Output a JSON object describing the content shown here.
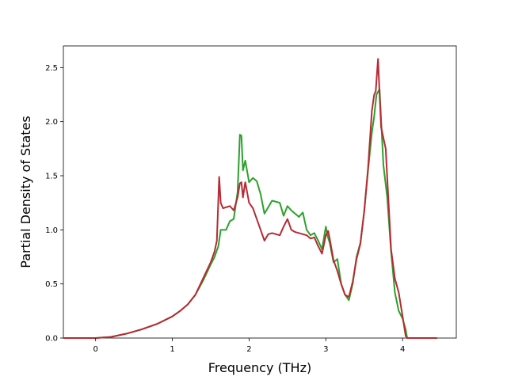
{
  "chart_data": {
    "type": "line",
    "title": "",
    "xlabel": "Frequency (THz)",
    "ylabel": "Partial Density of States",
    "xlim": [
      -0.42,
      4.7
    ],
    "ylim": [
      0.0,
      2.7
    ],
    "xticks": [
      0,
      1,
      2,
      3,
      4
    ],
    "yticks": [
      0.0,
      0.5,
      1.0,
      1.5,
      2.0,
      2.5
    ],
    "xtick_labels": [
      "0",
      "1",
      "2",
      "3",
      "4"
    ],
    "ytick_labels": [
      "0.0",
      "0.5",
      "1.0",
      "1.5",
      "2.0",
      "2.5"
    ],
    "grid": false,
    "series": [
      {
        "color": "#2ca02c",
        "x": [
          -0.42,
          0.0,
          0.2,
          0.4,
          0.6,
          0.8,
          1.0,
          1.1,
          1.2,
          1.3,
          1.4,
          1.5,
          1.55,
          1.6,
          1.63,
          1.7,
          1.75,
          1.8,
          1.85,
          1.88,
          1.9,
          1.92,
          1.95,
          2.0,
          2.05,
          2.1,
          2.15,
          2.2,
          2.3,
          2.4,
          2.45,
          2.5,
          2.55,
          2.6,
          2.65,
          2.7,
          2.75,
          2.8,
          2.85,
          2.9,
          2.95,
          3.0,
          3.02,
          3.05,
          3.1,
          3.15,
          3.2,
          3.25,
          3.3,
          3.35,
          3.4,
          3.45,
          3.5,
          3.55,
          3.6,
          3.63,
          3.66,
          3.7,
          3.75,
          3.8,
          3.85,
          3.9,
          3.95,
          4.0,
          4.04,
          4.06,
          4.1,
          4.2,
          4.3,
          4.45
        ],
        "y": [
          0.0,
          0.0,
          0.01,
          0.04,
          0.08,
          0.13,
          0.2,
          0.25,
          0.31,
          0.4,
          0.53,
          0.68,
          0.75,
          0.85,
          1.0,
          1.0,
          1.08,
          1.1,
          1.35,
          1.88,
          1.87,
          1.55,
          1.64,
          1.44,
          1.48,
          1.45,
          1.33,
          1.15,
          1.27,
          1.25,
          1.13,
          1.22,
          1.18,
          1.15,
          1.12,
          1.16,
          1.0,
          0.95,
          0.97,
          0.9,
          0.82,
          1.03,
          0.95,
          0.88,
          0.7,
          0.73,
          0.5,
          0.4,
          0.35,
          0.5,
          0.75,
          0.88,
          1.17,
          1.55,
          1.9,
          2.05,
          2.25,
          2.3,
          1.6,
          1.3,
          0.8,
          0.42,
          0.25,
          0.18,
          0.08,
          0.0,
          0.0,
          0.0,
          0.0,
          0.0
        ]
      },
      {
        "color": "#b72a33",
        "x": [
          -0.42,
          0.0,
          0.2,
          0.4,
          0.6,
          0.8,
          1.0,
          1.1,
          1.2,
          1.3,
          1.4,
          1.5,
          1.55,
          1.58,
          1.61,
          1.63,
          1.66,
          1.75,
          1.8,
          1.85,
          1.88,
          1.9,
          1.92,
          1.95,
          2.0,
          2.05,
          2.1,
          2.15,
          2.2,
          2.25,
          2.3,
          2.4,
          2.45,
          2.5,
          2.55,
          2.6,
          2.65,
          2.7,
          2.75,
          2.8,
          2.85,
          2.9,
          2.95,
          3.0,
          3.03,
          3.05,
          3.1,
          3.15,
          3.2,
          3.25,
          3.3,
          3.35,
          3.4,
          3.45,
          3.5,
          3.55,
          3.6,
          3.63,
          3.65,
          3.68,
          3.72,
          3.78,
          3.8,
          3.85,
          3.9,
          3.95,
          4.0,
          4.04,
          4.06,
          4.1,
          4.2,
          4.3,
          4.45
        ],
        "y": [
          0.0,
          0.0,
          0.01,
          0.04,
          0.08,
          0.13,
          0.2,
          0.25,
          0.31,
          0.4,
          0.55,
          0.7,
          0.8,
          0.9,
          1.49,
          1.25,
          1.2,
          1.22,
          1.18,
          1.3,
          1.43,
          1.44,
          1.3,
          1.44,
          1.25,
          1.2,
          1.1,
          1.0,
          0.9,
          0.96,
          0.97,
          0.95,
          1.03,
          1.1,
          1.0,
          0.98,
          0.97,
          0.96,
          0.95,
          0.92,
          0.93,
          0.85,
          0.78,
          0.95,
          0.99,
          0.92,
          0.72,
          0.62,
          0.5,
          0.4,
          0.38,
          0.52,
          0.73,
          0.87,
          1.17,
          1.57,
          2.1,
          2.25,
          2.28,
          2.58,
          1.95,
          1.75,
          1.48,
          0.82,
          0.55,
          0.42,
          0.2,
          0.02,
          0.0,
          0.0,
          0.0,
          0.0,
          0.0
        ]
      }
    ]
  }
}
